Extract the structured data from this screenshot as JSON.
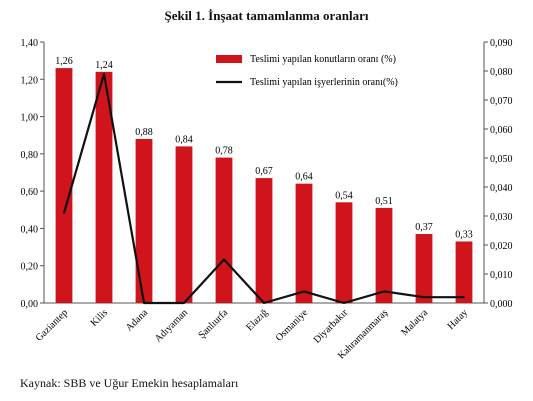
{
  "chart_data": {
    "type": "bar",
    "title": "Şekil 1. İnşaat tamamlanma oranları",
    "source": "Kaynak: SBB ve Uğur Emekin hesaplamaları",
    "categories": [
      "Gaziantep",
      "Kilis",
      "Adana",
      "Adıyaman",
      "Şanlıurfa",
      "Elazığ",
      "Osmaniye",
      "Diyarbakır",
      "Kahramanmaraş",
      "Malatya",
      "Hatay"
    ],
    "series": [
      {
        "name": "Teslimi yapılan konutların oranı (%)",
        "type": "bar",
        "axis": "left",
        "color": "#d0141b",
        "values": [
          1.26,
          1.24,
          0.88,
          0.84,
          0.78,
          0.67,
          0.64,
          0.54,
          0.51,
          0.37,
          0.33
        ],
        "labels": [
          "1,26",
          "1,24",
          "0,88",
          "0,84",
          "0,78",
          "0,67",
          "0,64",
          "0,54",
          "0,51",
          "0,37",
          "0,33"
        ]
      },
      {
        "name": "Teslimi yapılan işyerlerinin oranı(%)",
        "type": "line",
        "axis": "right",
        "color": "#111111",
        "values": [
          0.031,
          0.079,
          0.0,
          0.0,
          0.015,
          0.0,
          0.004,
          0.0,
          0.004,
          0.002,
          0.002
        ]
      }
    ],
    "ylim_left": [
      0,
      1.4
    ],
    "yticks_left": [
      "0,00",
      "0,20",
      "0,40",
      "0,60",
      "0,80",
      "1,00",
      "1,20",
      "1,40"
    ],
    "ylim_right": [
      0,
      0.09
    ],
    "yticks_right": [
      "0,000",
      "0,010",
      "0,020",
      "0,030",
      "0,040",
      "0,050",
      "0,060",
      "0,070",
      "0,080",
      "0,090"
    ],
    "legend_position": "top-right",
    "grid": false
  }
}
